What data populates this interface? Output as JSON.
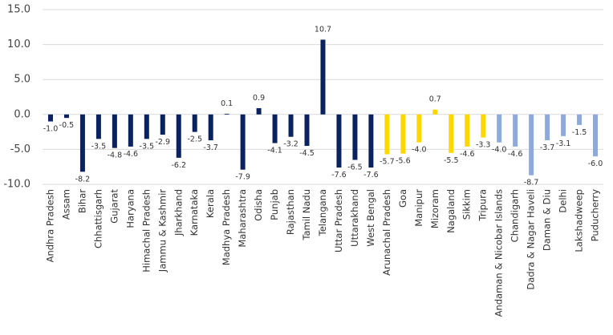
{
  "chart_data": {
    "type": "bar",
    "categories": [
      "Andhra Pradesh",
      "Assam",
      "Bihar",
      "Chhattisgarh",
      "Gujarat",
      "Haryana",
      "Himachal Pradesh",
      "Jammu & Kashmir",
      "Jharkhand",
      "Karnataka",
      "Kerala",
      "Madhya Pradesh",
      "Maharashtra",
      "Odisha",
      "Punjab",
      "Rajasthan",
      "Tamil Nadu",
      "Telangana",
      "Uttar Pradesh",
      "Uttarakhand",
      "West Bengal",
      "Arunachal Pradesh",
      "Goa",
      "Manipur",
      "Mizoram",
      "Nagaland",
      "Sikkim",
      "Tripura",
      "Andaman & Nicobar Islands",
      "Chandigarh",
      "Dadra & Nagar Haveli",
      "Daman & Diu",
      "Delhi",
      "Lakshadweep",
      "Puducherry"
    ],
    "values": [
      -1.0,
      -0.5,
      -8.2,
      -3.5,
      -4.8,
      -4.6,
      -3.5,
      -2.9,
      -6.2,
      -2.5,
      -3.7,
      0.1,
      -7.9,
      0.9,
      -4.1,
      -3.2,
      -4.5,
      10.7,
      -7.6,
      -6.5,
      -7.6,
      -5.7,
      -5.6,
      -4.0,
      0.7,
      -5.5,
      -4.6,
      -3.3,
      -4.0,
      -4.6,
      -8.7,
      -3.7,
      -3.1,
      -1.5,
      -6.0
    ],
    "value_labels": [
      "-1.0",
      "-0.5",
      "-8.2",
      "-3.5",
      "-4.8",
      "-4.6",
      "-3.5",
      "-2.9",
      "-6.2",
      "-2.5",
      "-3.7",
      "0.1",
      "-7.9",
      "0.9",
      "-4.1",
      "-3.2",
      "-4.5",
      "10.7",
      "-7.6",
      "-6.5",
      "-7.6",
      "-5.7",
      "-5.6",
      "-4.0",
      "0.7",
      "-5.5",
      "-4.6",
      "-3.3",
      "-4.0",
      "-4.6",
      "-8.7",
      "-3.7",
      "-3.1",
      "-1.5",
      "-6.0"
    ],
    "colors": [
      "#0b2260",
      "#0b2260",
      "#0b2260",
      "#0b2260",
      "#0b2260",
      "#0b2260",
      "#0b2260",
      "#0b2260",
      "#0b2260",
      "#0b2260",
      "#0b2260",
      "#0b2260",
      "#0b2260",
      "#0b2260",
      "#0b2260",
      "#0b2260",
      "#0b2260",
      "#0b2260",
      "#0b2260",
      "#0b2260",
      "#0b2260",
      "#ffd700",
      "#ffd700",
      "#ffd700",
      "#ffd700",
      "#ffd700",
      "#ffd700",
      "#ffd700",
      "#8eaadb",
      "#8eaadb",
      "#8eaadb",
      "#8eaadb",
      "#8eaadb",
      "#8eaadb",
      "#8eaadb"
    ],
    "ylim": [
      -10,
      15
    ],
    "yticks": [
      {
        "value": -10,
        "label": "-10.0"
      },
      {
        "value": -5,
        "label": "-5.0"
      },
      {
        "value": 0,
        "label": "0.0"
      },
      {
        "value": 5,
        "label": "5.0"
      },
      {
        "value": 10,
        "label": "10.0"
      },
      {
        "value": 15,
        "label": "15.0"
      }
    ],
    "grid": true
  }
}
